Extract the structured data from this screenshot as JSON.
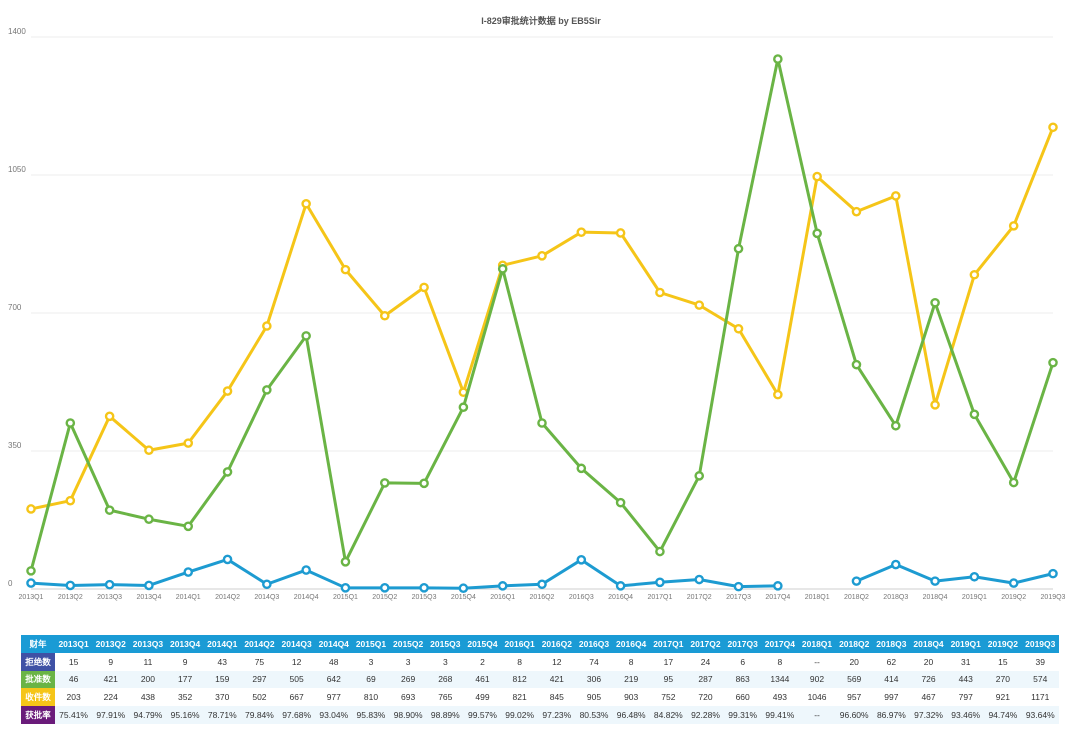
{
  "chart_data": {
    "type": "line",
    "title": "I-829审批统计数据 by EB5Sir",
    "xlabel": "",
    "ylabel": "",
    "ylim": [
      0,
      1400
    ],
    "yticks": [
      0,
      350,
      700,
      1050,
      1400
    ],
    "grid": true,
    "categories": [
      "2013Q1",
      "2013Q2",
      "2013Q3",
      "2013Q4",
      "2014Q1",
      "2014Q2",
      "2014Q3",
      "2014Q4",
      "2015Q1",
      "2015Q2",
      "2015Q3",
      "2015Q4",
      "2016Q1",
      "2016Q2",
      "2016Q3",
      "2016Q4",
      "2017Q1",
      "2017Q2",
      "2017Q3",
      "2017Q4",
      "2018Q1",
      "2018Q2",
      "2018Q3",
      "2018Q4",
      "2019Q1",
      "2019Q2",
      "2019Q3"
    ],
    "series": [
      {
        "name": "收件数",
        "color": "#f5c518",
        "values": [
          203,
          224,
          438,
          352,
          370,
          502,
          667,
          977,
          810,
          693,
          765,
          499,
          821,
          845,
          905,
          903,
          752,
          720,
          660,
          493,
          1046,
          957,
          997,
          467,
          797,
          921,
          1171
        ]
      },
      {
        "name": "批准数",
        "color": "#6ab445",
        "values": [
          46,
          421,
          200,
          177,
          159,
          297,
          505,
          642,
          69,
          269,
          268,
          461,
          812,
          421,
          306,
          219,
          95,
          287,
          863,
          1344,
          902,
          569,
          414,
          726,
          443,
          270,
          574
        ]
      },
      {
        "name": "拒绝数",
        "color": "#1d9bd1",
        "values": [
          15,
          9,
          11,
          9,
          43,
          75,
          12,
          48,
          3,
          3,
          3,
          2,
          8,
          12,
          74,
          8,
          17,
          24,
          6,
          8,
          null,
          20,
          62,
          20,
          31,
          15,
          39
        ]
      }
    ]
  },
  "table": {
    "header_label": "财年",
    "rows": [
      {
        "label": "拒绝数",
        "label_color": "#3f51a5",
        "cells": [
          "15",
          "9",
          "11",
          "9",
          "43",
          "75",
          "12",
          "48",
          "3",
          "3",
          "3",
          "2",
          "8",
          "12",
          "74",
          "8",
          "17",
          "24",
          "6",
          "8",
          "--",
          "20",
          "62",
          "20",
          "31",
          "15",
          "39"
        ]
      },
      {
        "label": "批准数",
        "label_color": "#6ab445",
        "cells": [
          "46",
          "421",
          "200",
          "177",
          "159",
          "297",
          "505",
          "642",
          "69",
          "269",
          "268",
          "461",
          "812",
          "421",
          "306",
          "219",
          "95",
          "287",
          "863",
          "1344",
          "902",
          "569",
          "414",
          "726",
          "443",
          "270",
          "574"
        ]
      },
      {
        "label": "收件数",
        "label_color": "#f5c518",
        "cells": [
          "203",
          "224",
          "438",
          "352",
          "370",
          "502",
          "667",
          "977",
          "810",
          "693",
          "765",
          "499",
          "821",
          "845",
          "905",
          "903",
          "752",
          "720",
          "660",
          "493",
          "1046",
          "957",
          "997",
          "467",
          "797",
          "921",
          "1171"
        ]
      },
      {
        "label": "获批率",
        "label_color": "#6a1b7a",
        "cells": [
          "75.41%",
          "97.91%",
          "94.79%",
          "95.16%",
          "78.71%",
          "79.84%",
          "97.68%",
          "93.04%",
          "95.83%",
          "98.90%",
          "98.89%",
          "99.57%",
          "99.02%",
          "97.23%",
          "80.53%",
          "96.48%",
          "84.82%",
          "92.28%",
          "99.31%",
          "99.41%",
          "--",
          "96.60%",
          "86.97%",
          "97.32%",
          "93.46%",
          "94.74%",
          "93.64%"
        ]
      }
    ]
  }
}
